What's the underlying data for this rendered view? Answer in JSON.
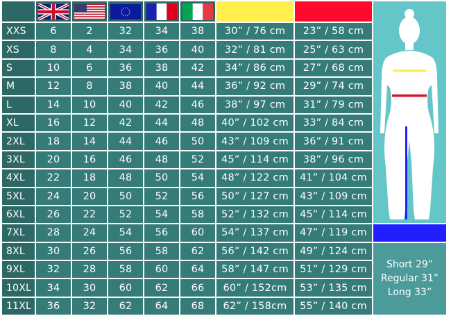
{
  "header": {
    "flags": [
      {
        "icon": "uk-flag-icon",
        "label": "UK"
      },
      {
        "icon": "us-flag-icon",
        "label": "US"
      },
      {
        "icon": "eu-flag-icon",
        "label": "EU"
      },
      {
        "icon": "france-flag-icon",
        "label": "FR"
      },
      {
        "icon": "italy-flag-icon",
        "label": "IT"
      }
    ],
    "measure_colors": {
      "chest": "#fff04e",
      "waist": "#ff0a2c",
      "inseam": "#2020ff"
    }
  },
  "rows": [
    {
      "size": "XXS",
      "uk": "6",
      "us": "2",
      "eu": "32",
      "fr": "34",
      "it": "38",
      "chest": "30” / 76 cm",
      "waist": "23” / 58 cm"
    },
    {
      "size": "XS",
      "uk": "8",
      "us": "4",
      "eu": "34",
      "fr": "36",
      "it": "40",
      "chest": "32” / 81 cm",
      "waist": "25” / 63 cm"
    },
    {
      "size": "S",
      "uk": "10",
      "us": "6",
      "eu": "36",
      "fr": "38",
      "it": "42",
      "chest": "34” / 86 cm",
      "waist": "27” / 68 cm"
    },
    {
      "size": "M",
      "uk": "12",
      "us": "8",
      "eu": "38",
      "fr": "40",
      "it": "44",
      "chest": "36” / 92 cm",
      "waist": "29” / 74 cm"
    },
    {
      "size": "L",
      "uk": "14",
      "us": "10",
      "eu": "40",
      "fr": "42",
      "it": "46",
      "chest": "38” / 97 cm",
      "waist": "31” / 79 cm"
    },
    {
      "size": "XL",
      "uk": "16",
      "us": "12",
      "eu": "42",
      "fr": "44",
      "it": "48",
      "chest": "40” / 102 cm",
      "waist": "33” / 84 cm"
    },
    {
      "size": "2XL",
      "uk": "18",
      "us": "14",
      "eu": "44",
      "fr": "46",
      "it": "50",
      "chest": "43” / 109 cm",
      "waist": "36” / 91 cm"
    },
    {
      "size": "3XL",
      "uk": "20",
      "us": "16",
      "eu": "46",
      "fr": "48",
      "it": "52",
      "chest": "45” / 114 cm",
      "waist": "38” / 96 cm"
    },
    {
      "size": "4XL",
      "uk": "22",
      "us": "18",
      "eu": "48",
      "fr": "50",
      "it": "54",
      "chest": "48” / 122 cm",
      "waist": "41” / 104 cm"
    },
    {
      "size": "5XL",
      "uk": "24",
      "us": "20",
      "eu": "50",
      "fr": "52",
      "it": "56",
      "chest": "50” / 127 cm",
      "waist": "43” / 109 cm"
    },
    {
      "size": "6XL",
      "uk": "26",
      "us": "22",
      "eu": "52",
      "fr": "54",
      "it": "58",
      "chest": "52” / 132 cm",
      "waist": "45” / 114 cm"
    },
    {
      "size": "7XL",
      "uk": "28",
      "us": "24",
      "eu": "54",
      "fr": "56",
      "it": "60",
      "chest": "54” / 137 cm",
      "waist": "47” / 119 cm"
    },
    {
      "size": "8XL",
      "uk": "30",
      "us": "26",
      "eu": "56",
      "fr": "58",
      "it": "62",
      "chest": "56” / 142 cm",
      "waist": "49” / 124 cm"
    },
    {
      "size": "9XL",
      "uk": "32",
      "us": "28",
      "eu": "58",
      "fr": "60",
      "it": "64",
      "chest": "58” / 147 cm",
      "waist": "51” / 129 cm"
    },
    {
      "size": "10XL",
      "uk": "34",
      "us": "30",
      "eu": "60",
      "fr": "62",
      "it": "66",
      "chest": "60” / 152cm",
      "waist": "53” / 135 cm"
    },
    {
      "size": "11XL",
      "uk": "36",
      "us": "32",
      "eu": "62",
      "fr": "64",
      "it": "68",
      "chest": "62” / 158cm",
      "waist": "55” / 140 cm"
    }
  ],
  "inseam": {
    "short": "Short 29”",
    "regular": "Regular 31”",
    "long": "Long 33”"
  }
}
